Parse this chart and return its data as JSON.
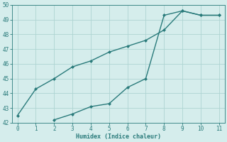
{
  "line1_x": [
    0,
    1,
    2,
    3,
    4,
    5,
    6,
    7,
    8,
    9,
    10,
    11
  ],
  "line1_y": [
    42.5,
    44.3,
    45.0,
    45.8,
    46.2,
    46.8,
    47.2,
    47.6,
    48.3,
    49.6,
    49.3,
    49.3
  ],
  "line2_x": [
    2,
    3,
    4,
    5,
    6,
    7,
    8,
    9,
    10,
    11
  ],
  "line2_y": [
    42.2,
    42.6,
    43.1,
    43.3,
    44.4,
    45.0,
    49.3,
    49.6,
    49.3,
    49.3
  ],
  "color": "#2a7b7b",
  "xlabel": "Humidex (Indice chaleur)",
  "ylim": [
    42,
    50
  ],
  "xlim": [
    -0.3,
    11.3
  ],
  "yticks": [
    42,
    43,
    44,
    45,
    46,
    47,
    48,
    49,
    50
  ],
  "xticks": [
    0,
    1,
    2,
    3,
    4,
    5,
    6,
    7,
    8,
    9,
    10,
    11
  ],
  "background_color": "#d5edec",
  "grid_color": "#aed4d2",
  "font_family": "monospace",
  "tick_fontsize": 5.5,
  "xlabel_fontsize": 6
}
